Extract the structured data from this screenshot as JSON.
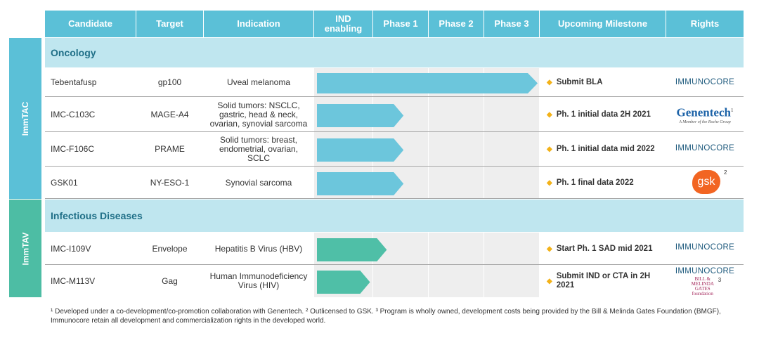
{
  "headers": [
    "Candidate",
    "Target",
    "Indication",
    "IND enabling",
    "Phase 1",
    "Phase 2",
    "Phase 3",
    "Upcoming Milestone",
    "Rights"
  ],
  "side_labels": {
    "immtac": "ImmTAC",
    "immtav": "ImmTAV"
  },
  "sections": {
    "oncology": "Oncology",
    "infectious": "Infectious Diseases"
  },
  "rows": [
    {
      "candidate": "Tebentafusp",
      "target": "gp100",
      "indication": "Uveal melanoma",
      "milestone": "Submit BLA",
      "rights": "IMMUNOCORE",
      "stage_progress": 4.0
    },
    {
      "candidate": "IMC-C103C",
      "target": "MAGE-A4",
      "indication": "Solid tumors: NSCLC, gastric, head & neck, ovarian, synovial sarcoma",
      "milestone": "Ph. 1 initial data 2H 2021",
      "rights": "Genentech",
      "rights_sub": "A Member of the Roche Group",
      "rights_sup": "1",
      "stage_progress": 1.6
    },
    {
      "candidate": "IMC-F106C",
      "target": "PRAME",
      "indication": "Solid tumors: breast, endometrial, ovarian, SCLC",
      "milestone": "Ph. 1 initial data mid 2022",
      "rights": "IMMUNOCORE",
      "stage_progress": 1.6
    },
    {
      "candidate": "GSK01",
      "target": "NY-ESO-1",
      "indication": "Synovial sarcoma",
      "milestone": "Ph. 1 final data 2022",
      "rights": "gsk",
      "rights_sup": "2",
      "stage_progress": 1.6
    },
    {
      "candidate": "IMC-I109V",
      "target": "Envelope",
      "indication": "Hepatitis B Virus (HBV)",
      "milestone": "Start Ph. 1 SAD mid 2021",
      "rights": "IMMUNOCORE",
      "stage_progress": 1.3
    },
    {
      "candidate": "IMC-M113V",
      "target": "Gag",
      "indication": "Human Immunodeficiency Virus (HIV)",
      "milestone": "Submit IND or CTA in 2H 2021",
      "rights": "IMMUNOCORE",
      "rights_extra": "BILL & MELINDA GATES foundation",
      "rights_sup": "3",
      "stage_progress": 1.0
    }
  ],
  "footnote": "¹ Developed under a co-development/co-promotion collaboration with Genentech. ² Outlicensed to GSK. ³ Program is wholly owned, development costs being provided by the Bill & Melinda Gates Foundation (BMGF), Immunocore retain all development and commercialization rights in the developed world.",
  "colors": {
    "header": "#5bc0d7",
    "section": "#bfe6ef",
    "side": "#5bc0d7",
    "side_tav": "#4dbda4",
    "arrow_tac": "#6cc6dc",
    "arrow_tav": "#4fbfa7",
    "diamond": "#f3b219",
    "gsk": "#f26522",
    "immunocore": "#1e5a7d"
  }
}
